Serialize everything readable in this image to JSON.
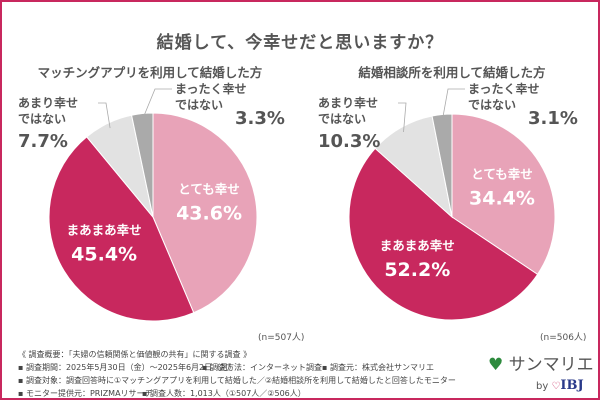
{
  "chart_data": [
    {
      "type": "pie",
      "title": "結婚して、今幸せだと思いますか？",
      "subtitle": "マッチングアプリを利用して結婚した方",
      "note": "(n=507人)",
      "slices": [
        {
          "label": "とても幸せ",
          "value": 43.6,
          "display": "43.6%",
          "color": "#e8a3b8"
        },
        {
          "label": "まあまあ幸せ",
          "value": 45.4,
          "display": "45.4%",
          "color": "#c8285e"
        },
        {
          "label": "あまり幸せ\nではない",
          "value": 7.7,
          "display": "7.7%",
          "color": "#e2e2e2"
        },
        {
          "label": "まったく幸せ\nではない",
          "value": 3.3,
          "display": "3.3%",
          "color": "#aaaaaa"
        }
      ]
    },
    {
      "type": "pie",
      "title": "結婚して、今幸せだと思いますか？",
      "subtitle": "結婚相談所を利用して結婚した方",
      "note": "(n=506人)",
      "slices": [
        {
          "label": "とても幸せ",
          "value": 34.4,
          "display": "34.4%",
          "color": "#e8a3b8"
        },
        {
          "label": "まあまあ幸せ",
          "value": 52.2,
          "display": "52.2%",
          "color": "#c8285e"
        },
        {
          "label": "あまり幸せ\nではない",
          "value": 10.3,
          "display": "10.3%",
          "color": "#e2e2e2"
        },
        {
          "label": "まったく幸せ\nではない",
          "value": 3.1,
          "display": "3.1%",
          "color": "#aaaaaa"
        }
      ]
    }
  ],
  "footer": {
    "overview": "《 調査概要：「夫婦の信頼関係と価値観の共有」に関する調査 》",
    "period": "▪ 調査期間：2025年5月30日（金）〜2025年6月2日（月）",
    "method": "▪ 調査方法：インターネット調査",
    "org": "▪ 調査元：株式会社サンマリエ",
    "target": "▪ 調査対象：調査回答時に①マッチングアプリを利用して結婚した／②結婚相談所を利用して結婚したと回答したモニター",
    "provider": "▪ モニター提供元：PRIZMAリサーチ",
    "count": "▪ 調査人数：1,013人（①507人／②506人）"
  },
  "logo": {
    "name": "サンマリエ",
    "by": "by",
    "brand": "IBJ",
    "accent": "#2e8b3e"
  },
  "colors": {
    "border": "#c8285e"
  }
}
